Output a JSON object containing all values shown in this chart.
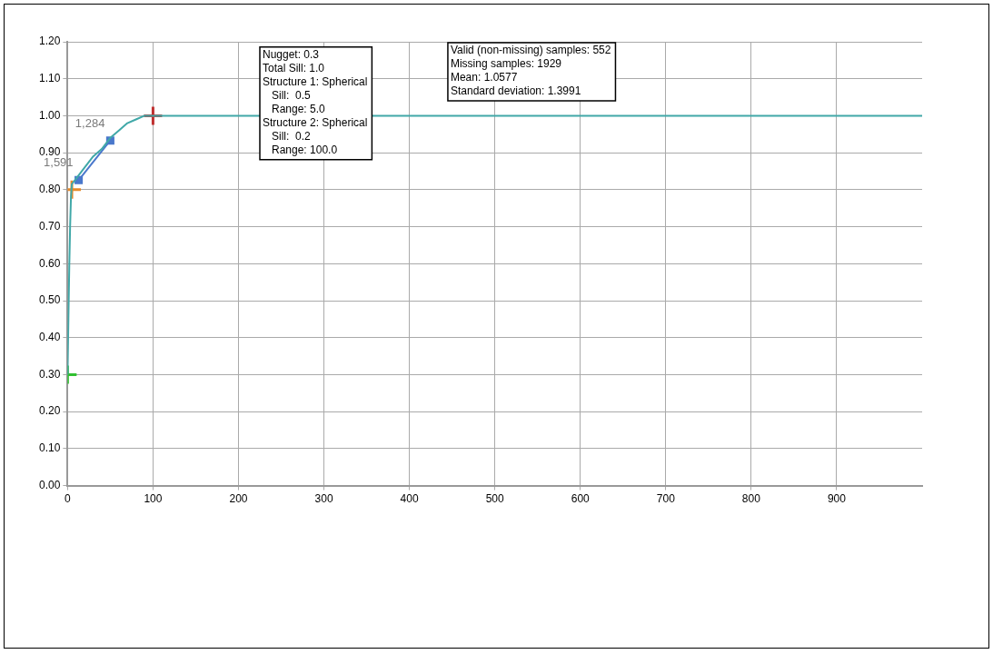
{
  "chart_data": {
    "type": "line",
    "xlim": [
      0,
      1000
    ],
    "xticks": [
      0,
      100,
      200,
      300,
      400,
      500,
      600,
      700,
      800,
      900
    ],
    "ylim": [
      0,
      1.2
    ],
    "yticks": [
      {
        "value": 0,
        "label": "0.00"
      },
      {
        "value": 0.1,
        "label": "0.10"
      },
      {
        "value": 0.2,
        "label": "0.20"
      },
      {
        "value": 0.3,
        "label": "0.30"
      },
      {
        "value": 0.4,
        "label": "0.40"
      },
      {
        "value": 0.5,
        "label": "0.50"
      },
      {
        "value": 0.6,
        "label": "0.60"
      },
      {
        "value": 0.7,
        "label": "0.70"
      },
      {
        "value": 0.8,
        "label": "0.80"
      },
      {
        "value": 0.9,
        "label": "0.90"
      },
      {
        "value": 1.0,
        "label": "1.00"
      },
      {
        "value": 1.1,
        "label": "1.10"
      },
      {
        "value": 1.2,
        "label": "1.20"
      }
    ],
    "grid": true,
    "legend": false,
    "series": [
      {
        "color": "#40a8a8",
        "marker": "none",
        "x": [
          0,
          1,
          2,
          3,
          4,
          5,
          10,
          20,
          30,
          40,
          50,
          60,
          70,
          80,
          90,
          100,
          1000
        ],
        "values": [
          0.3,
          0.45,
          0.59,
          0.7,
          0.78,
          0.815,
          0.83,
          0.86,
          0.89,
          0.91,
          0.94,
          0.96,
          0.98,
          0.99,
          1.0,
          1.0,
          1.0
        ]
      },
      {
        "type": "line",
        "color": "#4a78cc",
        "marker": "square",
        "x": [
          13,
          50
        ],
        "values": [
          0.826,
          0.933
        ]
      },
      {
        "type": "scatter",
        "color": "#30c030",
        "marker": "cross",
        "x": [
          0
        ],
        "values": [
          0.3
        ]
      },
      {
        "type": "scatter",
        "color": "#e88a2a",
        "marker": "cross",
        "x": [
          5
        ],
        "values": [
          0.8
        ]
      },
      {
        "type": "scatter",
        "color": "#c03030",
        "marker": "cross",
        "x": [
          100
        ],
        "values": [
          1.0
        ]
      }
    ],
    "annotations": [
      {
        "text": "1,591",
        "x": 13,
        "y": 0.826
      },
      {
        "text": "1,284",
        "x": 50,
        "y": 0.933
      },
      "Nugget: 0.3\nTotal Sill: 1.0\nStructure 1: Spherical\n   Sill:  0.5\n   Range: 5.0\nStructure 2: Spherical\n   Sill:  0.2\n   Range: 100.0",
      "Valid (non-missing) samples: 552\nMissing samples: 1929\nMean: 1.0577\nStandard deviation: 1.3991"
    ]
  }
}
